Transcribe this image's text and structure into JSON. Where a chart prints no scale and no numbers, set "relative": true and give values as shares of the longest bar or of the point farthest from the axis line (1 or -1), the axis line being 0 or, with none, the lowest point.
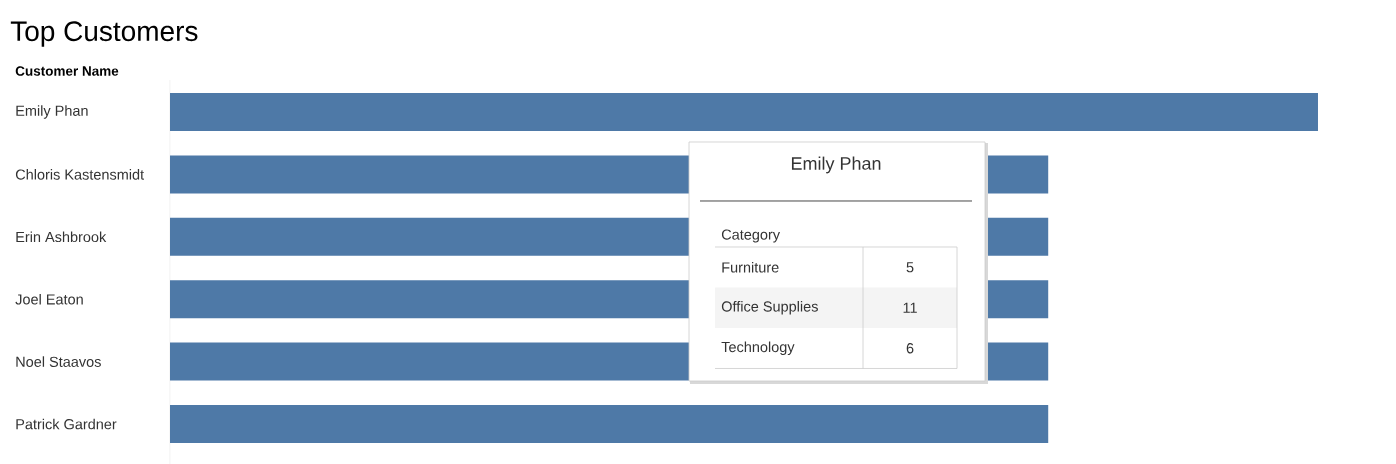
{
  "chart_data": {
    "type": "bar",
    "orientation": "horizontal",
    "relative": true,
    "title": "Top Customers",
    "ylabel": "Customer Name",
    "categories": [
      "Emily Phan",
      "Chloris Kastensmidt",
      "Erin Ashbrook",
      "Joel Eaton",
      "Noel Staavos",
      "Patrick Gardner"
    ],
    "values": [
      1,
      0.765,
      0.765,
      0.765,
      0.765,
      0.765
    ],
    "color": "#4e79a7",
    "annotations": [
      "Emily Phan",
      "Category",
      "Furniture",
      "5",
      "Office Supplies",
      "11",
      "Technology",
      "6"
    ]
  }
}
